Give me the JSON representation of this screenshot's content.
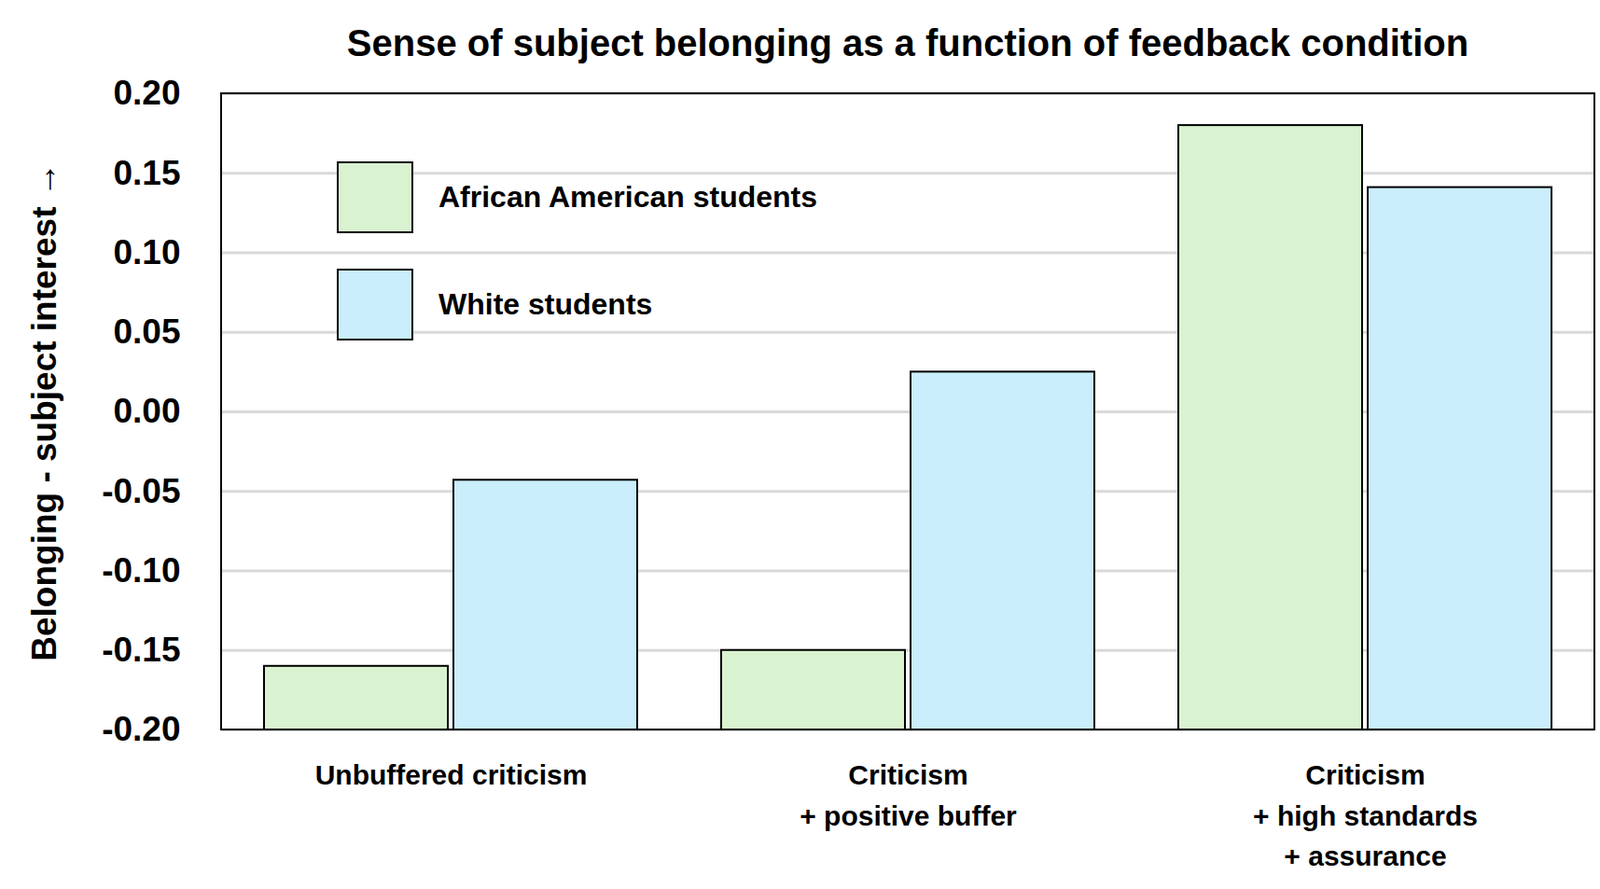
{
  "chart_data": {
    "type": "bar",
    "title": "Sense of subject belonging as a function of feedback condition",
    "ylabel": "Belonging - subject interest",
    "categories": [
      "Unbuffered criticism",
      "Criticism\n+ positive buffer",
      "Criticism\n+ high standards\n+ assurance"
    ],
    "series": [
      {
        "name": "African American students",
        "color": "#d9f2d0",
        "values": [
          -0.16,
          -0.15,
          0.18
        ]
      },
      {
        "name": "White students",
        "color": "#caeefb",
        "values": [
          -0.043,
          0.025,
          0.141
        ]
      }
    ],
    "ylim": [
      -0.2,
      0.2
    ],
    "yticks": [
      {
        "value": -0.2,
        "label": "-0.20"
      },
      0.15,
      {
        "value": -0.1,
        "label": "-0.10"
      },
      -0.05,
      {
        "value": 0,
        "label": "0.00"
      },
      0.05,
      {
        "value": 0.1,
        "label": "0.10"
      },
      -0.15,
      {
        "value": 0.2,
        "label": "0.20"
      }
    ],
    "grid": true,
    "legend": "upper left"
  }
}
